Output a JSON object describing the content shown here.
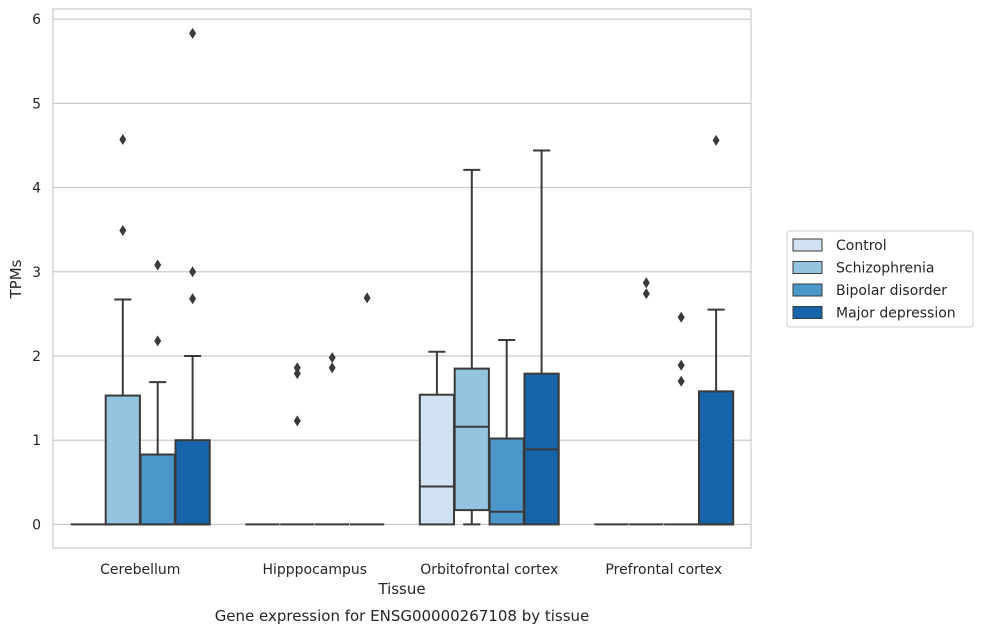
{
  "caption": "Gene expression for ENSG00000267108 by tissue",
  "chart_data": {
    "type": "box",
    "xlabel": "Tissue",
    "ylabel": "TPMs",
    "ylim": [
      -0.28,
      6.12
    ],
    "yticks": [
      0,
      1,
      2,
      3,
      4,
      5,
      6
    ],
    "grid": true,
    "legend_position": "right",
    "categories": [
      "Cerebellum",
      "Hipppocampus",
      "Orbitofrontal cortex",
      "Prefrontal cortex"
    ],
    "series": [
      {
        "name": "Control",
        "color": "#d0e1f2",
        "boxes": [
          {
            "q1": 0,
            "median": 0,
            "q3": 0,
            "whisker_low": 0,
            "whisker_high": 0,
            "outliers": []
          },
          {
            "q1": 0,
            "median": 0,
            "q3": 0,
            "whisker_low": 0,
            "whisker_high": 0,
            "outliers": []
          },
          {
            "q1": 0,
            "median": 0.45,
            "q3": 1.54,
            "whisker_low": 0,
            "whisker_high": 2.05,
            "outliers": []
          },
          {
            "q1": 0,
            "median": 0,
            "q3": 0,
            "whisker_low": 0,
            "whisker_high": 0,
            "outliers": []
          }
        ]
      },
      {
        "name": "Schizophrenia",
        "color": "#94c4df",
        "boxes": [
          {
            "q1": 0,
            "median": 0,
            "q3": 1.53,
            "whisker_low": 0,
            "whisker_high": 2.67,
            "outliers": [
              3.49,
              4.57
            ]
          },
          {
            "q1": 0,
            "median": 0,
            "q3": 0,
            "whisker_low": 0,
            "whisker_high": 0,
            "outliers": [
              1.23,
              1.79,
              1.86
            ]
          },
          {
            "q1": 0.17,
            "median": 1.16,
            "q3": 1.85,
            "whisker_low": 0,
            "whisker_high": 4.21,
            "outliers": []
          },
          {
            "q1": 0,
            "median": 0,
            "q3": 0,
            "whisker_low": 0,
            "whisker_high": 0,
            "outliers": [
              2.74,
              2.87
            ]
          }
        ]
      },
      {
        "name": "Bipolar disorder",
        "color": "#4a98c9",
        "boxes": [
          {
            "q1": 0,
            "median": 0,
            "q3": 0.83,
            "whisker_low": 0,
            "whisker_high": 1.69,
            "outliers": [
              2.18,
              3.08
            ]
          },
          {
            "q1": 0,
            "median": 0,
            "q3": 0,
            "whisker_low": 0,
            "whisker_high": 0,
            "outliers": [
              1.86,
              1.98
            ]
          },
          {
            "q1": 0,
            "median": 0.15,
            "q3": 1.02,
            "whisker_low": 0,
            "whisker_high": 2.19,
            "outliers": []
          },
          {
            "q1": 0,
            "median": 0,
            "q3": 0,
            "whisker_low": 0,
            "whisker_high": 0,
            "outliers": [
              1.7,
              1.89,
              2.46
            ]
          }
        ]
      },
      {
        "name": "Major depression",
        "color": "#1764ab",
        "boxes": [
          {
            "q1": 0,
            "median": 0,
            "q3": 1.0,
            "whisker_low": 0,
            "whisker_high": 2.0,
            "outliers": [
              2.68,
              3.0,
              5.83
            ]
          },
          {
            "q1": 0,
            "median": 0,
            "q3": 0,
            "whisker_low": 0,
            "whisker_high": 0,
            "outliers": [
              2.69
            ]
          },
          {
            "q1": 0,
            "median": 0.89,
            "q3": 1.79,
            "whisker_low": 0,
            "whisker_high": 4.44,
            "outliers": []
          },
          {
            "q1": 0,
            "median": 0,
            "q3": 1.58,
            "whisker_low": 0,
            "whisker_high": 2.55,
            "outliers": [
              4.56
            ]
          }
        ]
      }
    ]
  }
}
